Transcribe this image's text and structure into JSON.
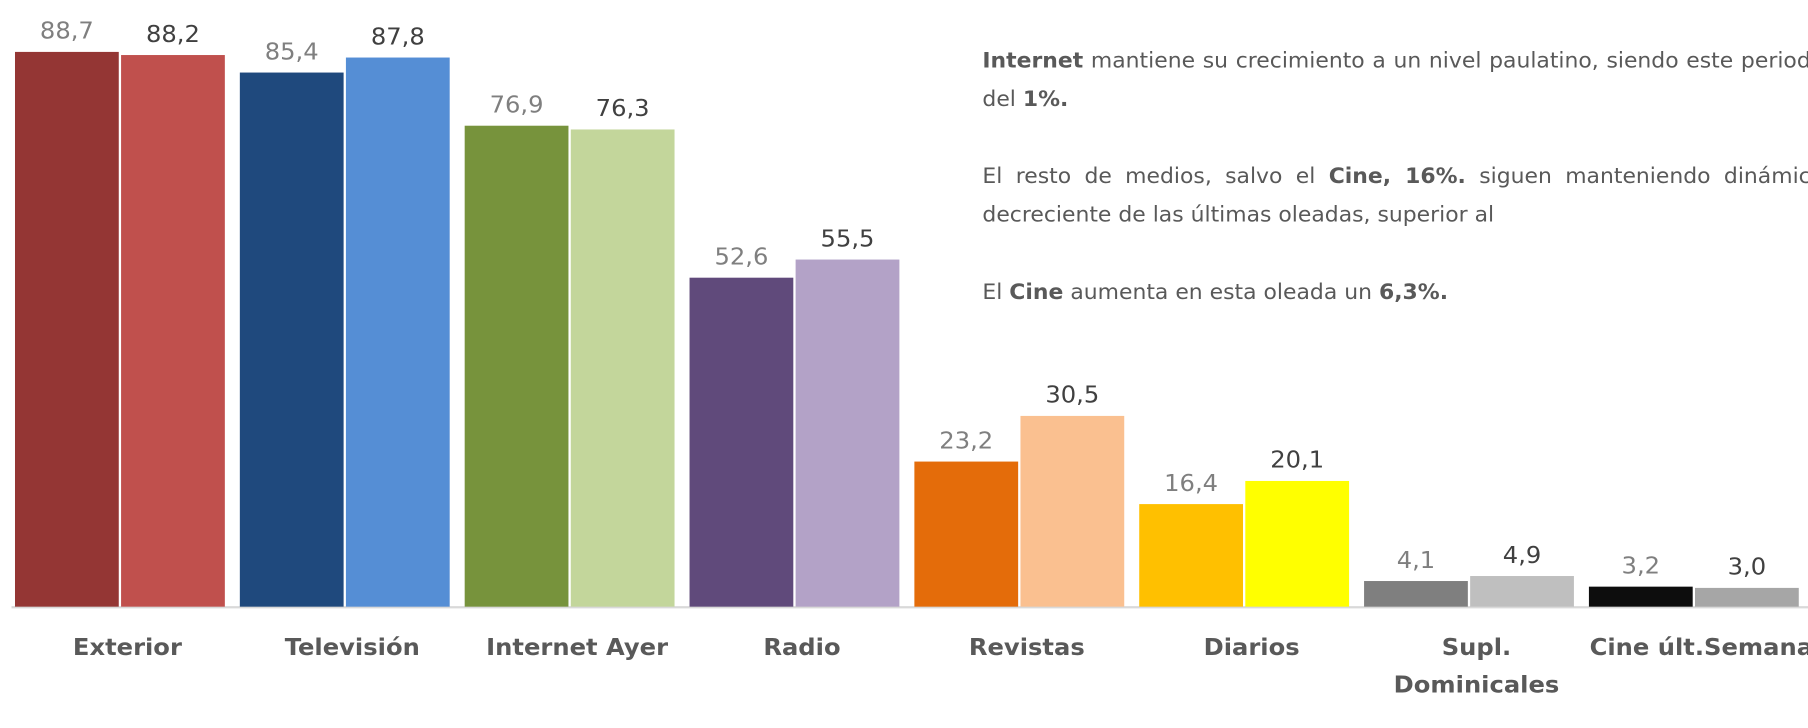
{
  "chart_data": {
    "type": "bar",
    "categories": [
      "Exterior",
      "Televisión",
      "Internet Ayer",
      "Radio",
      "Revistas",
      "Diarios",
      "Supl.\nDominicales",
      "Cine últ.Semana"
    ],
    "series": [
      {
        "colors": [
          "#943634",
          "#1f497d",
          "#77933c",
          "#604a7b",
          "#e46c0a",
          "#ffc000",
          "#7f7f7f",
          "#0d0d0d"
        ],
        "label_color": "#7f7f7f",
        "values": [
          88.7,
          85.4,
          76.9,
          52.6,
          23.2,
          16.4,
          4.1,
          3.2
        ],
        "value_labels": [
          "88,7",
          "85,4",
          "76,9",
          "52,6",
          "23,2",
          "16,4",
          "4,1",
          "3,2"
        ]
      },
      {
        "colors": [
          "#c0504d",
          "#558ed5",
          "#c3d69b",
          "#b3a2c7",
          "#fac090",
          "#ffff00",
          "#bfbfbf",
          "#a6a6a6"
        ],
        "label_color": "#404040",
        "values": [
          88.2,
          87.8,
          76.3,
          55.5,
          30.5,
          20.1,
          4.9,
          3.0
        ],
        "value_labels": [
          "88,2",
          "87,8",
          "76,3",
          "55,5",
          "30,5",
          "20,1",
          "4,9",
          "3,0"
        ]
      }
    ],
    "ylim": [
      0,
      97
    ]
  },
  "text": {
    "paragraphs": [
      [
        {
          "text": "Internet",
          "bold": true
        },
        {
          "text": " mantiene su crecimiento a un nivel paulatino, siendo este periodo del "
        },
        {
          "text": "1%.",
          "bold": true
        }
      ],
      [
        {
          "text": "El resto de medios, salvo el "
        },
        {
          "text": "Cine, 16%.",
          "bold": true
        },
        {
          "text": " siguen manteniendo dinámica decreciente de las últimas oleadas, superior al"
        }
      ],
      [
        {
          "text": "El "
        },
        {
          "text": "Cine",
          "bold": true
        },
        {
          "text": " aumenta en esta oleada un "
        },
        {
          "text": "6,3%.",
          "bold": true
        }
      ]
    ]
  }
}
